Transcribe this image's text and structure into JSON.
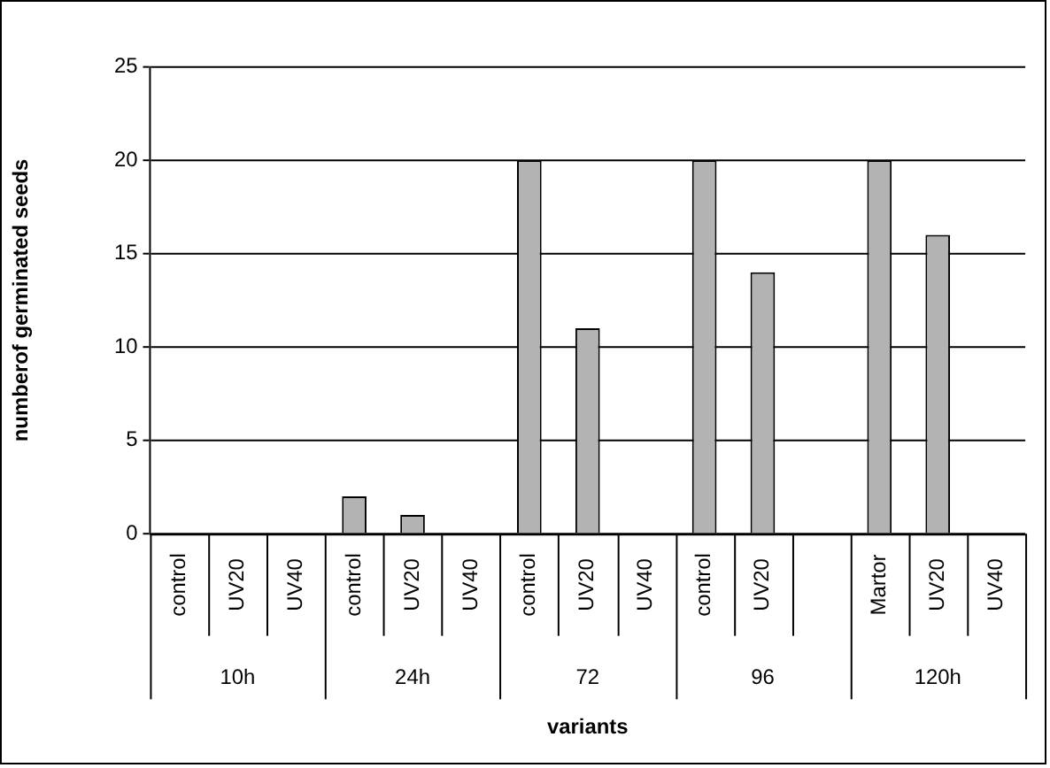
{
  "chart_data": {
    "type": "bar",
    "xlabel": "variants",
    "ylabel": "numberof germinated seeds",
    "categories": [
      "control",
      "UV20",
      "UV40",
      "control",
      "UV20",
      "UV40",
      "control",
      "UV20",
      "UV40",
      "control",
      "UV20",
      null,
      "Martor",
      "UV20",
      "UV40"
    ],
    "values": [
      0,
      0,
      0,
      2,
      1,
      0,
      20,
      11,
      0,
      20,
      14,
      null,
      20,
      16,
      0
    ],
    "color": "#b3b3b3",
    "annotations": [
      "10h",
      "24h",
      "72",
      "96",
      "120h"
    ],
    "ylim": [
      0,
      25
    ],
    "yticks": [
      0,
      5,
      10,
      15,
      20,
      25
    ],
    "grid": "y",
    "legend": false
  }
}
